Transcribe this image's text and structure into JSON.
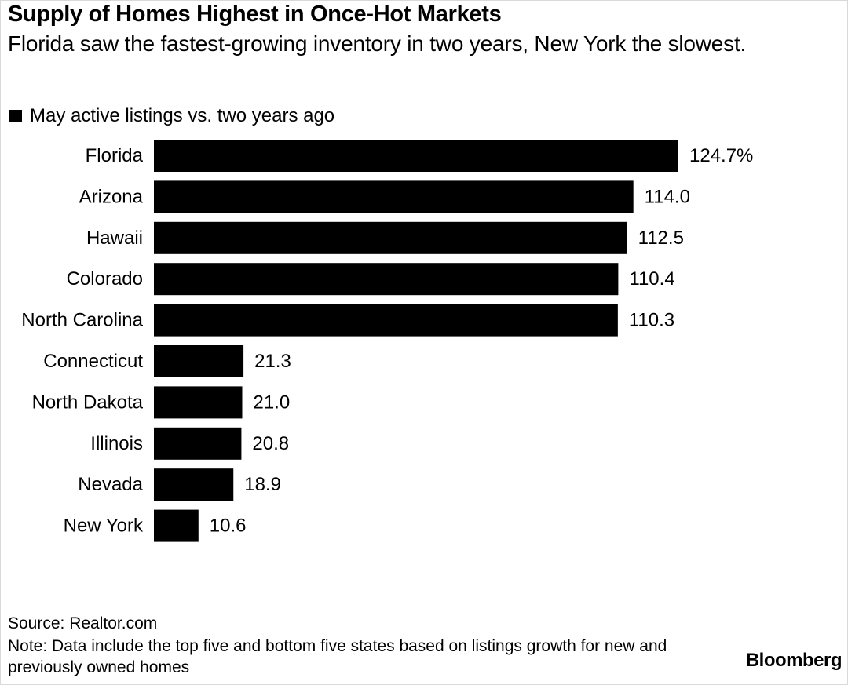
{
  "header": {
    "title": "Supply of Homes Highest in Once-Hot Markets",
    "subtitle": "Florida saw the fastest-growing inventory in two years, New York the slowest."
  },
  "legend": {
    "label": "May active listings vs. two years ago",
    "color": "#000000"
  },
  "chart_data": {
    "type": "bar",
    "orientation": "horizontal",
    "categories": [
      "Florida",
      "Arizona",
      "Hawaii",
      "Colorado",
      "North Carolina",
      "Connecticut",
      "North Dakota",
      "Illinois",
      "Nevada",
      "New York"
    ],
    "series": [
      {
        "name": "May active listings vs. two years ago",
        "values": [
          124.7,
          114.0,
          112.5,
          110.4,
          110.3,
          21.3,
          21.0,
          20.8,
          18.9,
          10.6
        ]
      }
    ],
    "value_labels": [
      "124.7%",
      "114.0",
      "112.5",
      "110.4",
      "110.3",
      "21.3",
      "21.0",
      "20.8",
      "18.9",
      "10.6"
    ],
    "xlim": [
      0,
      124.7
    ],
    "grid": false,
    "legend_position": "top-left",
    "bar_color": "#000000"
  },
  "footer": {
    "source": "Source: Realtor.com",
    "note": "Note: Data include the top five and bottom five states based on listings growth for new and previously owned homes",
    "brand": "Bloomberg"
  }
}
